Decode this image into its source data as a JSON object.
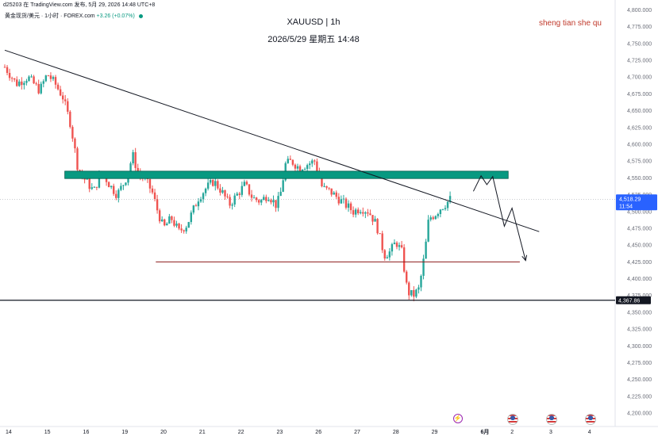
{
  "header": {
    "attribution": "d25203 在 TradingView.com 发布, 5月 29, 2026 14:48 UTC+8",
    "symbol_line": "黄金现货/美元 · 1小时 · FOREX.com",
    "change": "+3.26 (+0.07%)"
  },
  "title": "XAUUSD | 1h",
  "datetime": "2026/5/29 星期五 14:48",
  "watermark": "sheng tian she qu",
  "colors": {
    "up": "#26a69a",
    "down": "#ef5350",
    "resistance_zone": "#089981",
    "support_line": "#8b1a1a",
    "trendline": "#131722",
    "price_label": "#2962ff"
  },
  "chart_data": {
    "type": "candlestick",
    "title": "XAUUSD | 1h",
    "ylim": [
      4180,
      4810
    ],
    "y_ticks": [
      4200,
      4225,
      4250,
      4275,
      4300,
      4325,
      4350,
      4375,
      4400,
      4425,
      4450,
      4475,
      4500,
      4525,
      4550,
      4575,
      4600,
      4625,
      4650,
      4675,
      4700,
      4725,
      4750,
      4775,
      4800
    ],
    "x_ticks": [
      "14",
      "15",
      "16",
      "19",
      "20",
      "21",
      "22",
      "23",
      "26",
      "27",
      "28",
      "29",
      "6月",
      "2",
      "3",
      "4"
    ],
    "x_tick_positions": [
      0,
      1,
      2,
      3,
      4,
      5,
      6,
      7,
      8,
      9,
      10,
      11,
      12.3,
      13,
      14,
      15
    ],
    "x_range": [
      -0.1,
      15.6
    ],
    "price_path": [
      [
        -0.1,
        4715
      ],
      [
        0.2,
        4690
      ],
      [
        0.5,
        4700
      ],
      [
        0.8,
        4680
      ],
      [
        1.0,
        4705
      ],
      [
        1.2,
        4690
      ],
      [
        1.4,
        4670
      ],
      [
        1.6,
        4630
      ],
      [
        1.8,
        4560
      ],
      [
        2.0,
        4545
      ],
      [
        2.2,
        4530
      ],
      [
        2.4,
        4560
      ],
      [
        2.6,
        4540
      ],
      [
        2.8,
        4525
      ],
      [
        3.0,
        4545
      ],
      [
        3.1,
        4560
      ],
      [
        3.2,
        4585
      ],
      [
        3.35,
        4555
      ],
      [
        3.5,
        4550
      ],
      [
        3.7,
        4530
      ],
      [
        3.85,
        4500
      ],
      [
        4.0,
        4475
      ],
      [
        4.2,
        4490
      ],
      [
        4.4,
        4470
      ],
      [
        4.6,
        4480
      ],
      [
        4.75,
        4500
      ],
      [
        4.9,
        4520
      ],
      [
        5.1,
        4535
      ],
      [
        5.3,
        4545
      ],
      [
        5.5,
        4530
      ],
      [
        5.7,
        4510
      ],
      [
        5.9,
        4525
      ],
      [
        6.1,
        4540
      ],
      [
        6.3,
        4520
      ],
      [
        6.5,
        4515
      ],
      [
        6.7,
        4525
      ],
      [
        6.9,
        4510
      ],
      [
        7.0,
        4520
      ],
      [
        7.15,
        4570
      ],
      [
        7.3,
        4575
      ],
      [
        7.5,
        4565
      ],
      [
        7.7,
        4570
      ],
      [
        7.9,
        4575
      ],
      [
        8.1,
        4535
      ],
      [
        8.3,
        4530
      ],
      [
        8.5,
        4520
      ],
      [
        8.7,
        4510
      ],
      [
        8.9,
        4500
      ],
      [
        9.1,
        4505
      ],
      [
        9.3,
        4500
      ],
      [
        9.5,
        4480
      ],
      [
        9.7,
        4435
      ],
      [
        9.85,
        4440
      ],
      [
        10.0,
        4455
      ],
      [
        10.15,
        4440
      ],
      [
        10.3,
        4380
      ],
      [
        10.45,
        4375
      ],
      [
        10.6,
        4385
      ],
      [
        10.75,
        4440
      ],
      [
        10.85,
        4490
      ],
      [
        11.0,
        4495
      ],
      [
        11.15,
        4505
      ],
      [
        11.3,
        4512
      ],
      [
        11.4,
        4518.29
      ]
    ],
    "support_low": 4367.86,
    "last_price": "4,518.29",
    "countdown": "11:54",
    "support_label": "4,367.86",
    "resistance_zone": {
      "from": 4549,
      "to": 4560,
      "x_start": 1.45,
      "x_end": 12.9
    },
    "horizontal_support": {
      "price": 4425,
      "x_start": 3.8,
      "x_end": 13.2
    },
    "trendline": {
      "x1": -0.1,
      "y1": 4740,
      "x2": 13.7,
      "y2": 4470
    },
    "projection_arrow": [
      [
        12.0,
        4530
      ],
      [
        12.2,
        4553
      ],
      [
        12.35,
        4540
      ],
      [
        12.5,
        4552
      ],
      [
        12.8,
        4478
      ],
      [
        13.0,
        4505
      ],
      [
        13.35,
        4427
      ]
    ]
  },
  "events": [
    {
      "name": "lightning",
      "x": 11.6
    },
    {
      "name": "us-flag",
      "x": 13.0
    },
    {
      "name": "us-flag",
      "x": 14.0
    },
    {
      "name": "us-flag",
      "x": 15.0
    }
  ]
}
